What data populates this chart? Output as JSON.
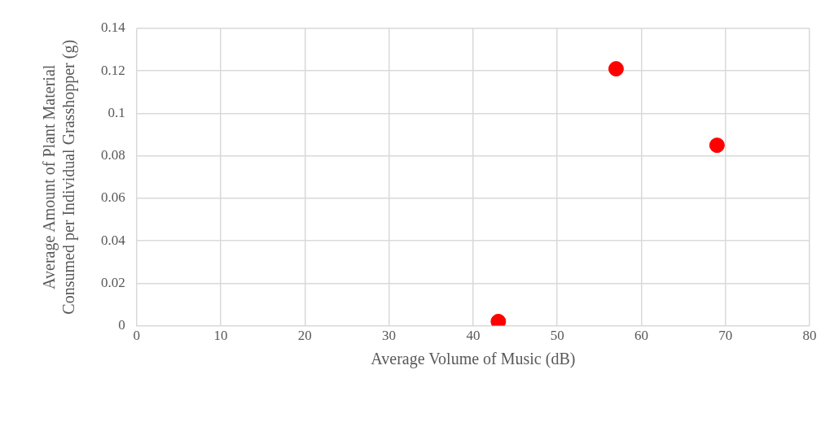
{
  "chart_data": {
    "type": "scatter",
    "xlabel": "Average Volume of Music (dB)",
    "ylabel": "Average Amount of Plant Material Consumed per Individual Grasshopper (g)",
    "x": [
      43,
      57,
      69
    ],
    "values": [
      0.002,
      0.121,
      0.085
    ],
    "color": "#ff0000",
    "marker": "circle",
    "xlim": [
      0,
      80
    ],
    "xticks": [
      0,
      10,
      20,
      30,
      40,
      50,
      60,
      70,
      80
    ],
    "ylim": [
      0,
      0.14
    ],
    "yticks": [
      0,
      0.02,
      0.04,
      0.06,
      0.08,
      0.1,
      0.12,
      0.14
    ],
    "grid": true
  }
}
